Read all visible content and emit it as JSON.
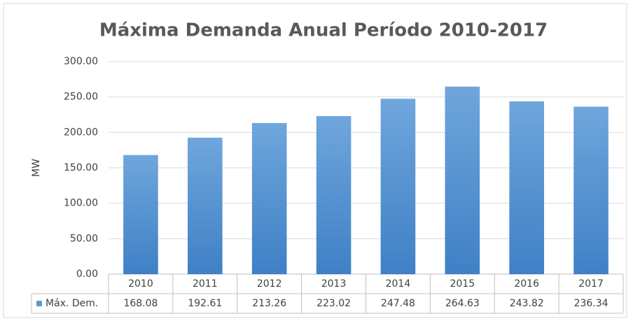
{
  "chart_data": {
    "type": "bar",
    "title": "Máxima  Demanda Anual Período 2010-2017",
    "y_label": "MW",
    "categories": [
      "2010",
      "2011",
      "2012",
      "2013",
      "2014",
      "2015",
      "2016",
      "2017"
    ],
    "series": [
      {
        "name": "Máx. Dem.",
        "color": "#5b9bd5",
        "values": [
          168.08,
          192.61,
          213.26,
          223.02,
          247.48,
          264.63,
          243.82,
          236.34
        ]
      }
    ],
    "ylim": [
      0,
      300
    ],
    "yticks": [
      {
        "value": 0,
        "label": "0.00"
      },
      {
        "value": 50,
        "label": "50.00"
      },
      {
        "value": 100,
        "label": "100.00"
      },
      {
        "value": 150,
        "label": "150.00"
      },
      {
        "value": 200,
        "label": "200.00"
      },
      {
        "value": 250,
        "label": "250.00"
      },
      {
        "value": 300,
        "label": "300.00"
      }
    ],
    "grid": true
  }
}
